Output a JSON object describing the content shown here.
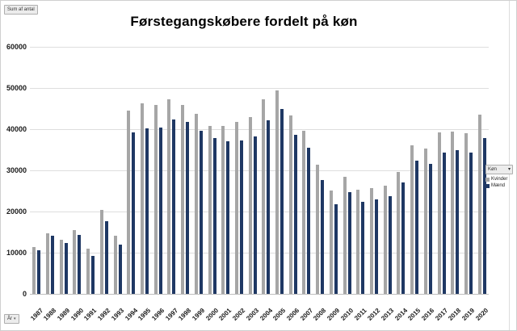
{
  "window": {
    "values_field_button": "Sum af antal",
    "axis_field_button": "År"
  },
  "legend": {
    "field_label": "Køn",
    "items": [
      {
        "label": "Kvinder",
        "color": "#a6a6a6"
      },
      {
        "label": "Mænd",
        "color": "#1f3864"
      }
    ]
  },
  "chart_data": {
    "type": "bar",
    "title": "Førstegangskøbere fordelt på køn",
    "xlabel": "",
    "ylabel": "",
    "ylim": [
      0,
      60000
    ],
    "yticks": [
      0,
      10000,
      20000,
      30000,
      40000,
      50000,
      60000
    ],
    "grid": true,
    "legend_position": "right",
    "categories": [
      1987,
      1988,
      1989,
      1990,
      1991,
      1992,
      1993,
      1994,
      1995,
      1996,
      1997,
      1998,
      1999,
      2000,
      2001,
      2002,
      2003,
      2004,
      2005,
      2006,
      2007,
      2008,
      2009,
      2010,
      2011,
      2012,
      2013,
      2014,
      2015,
      2016,
      2017,
      2018,
      2019,
      2020
    ],
    "series": [
      {
        "name": "Kvinder",
        "color": "#a6a6a6",
        "values": [
          11400,
          14800,
          13200,
          15500,
          10900,
          20300,
          14100,
          44600,
          46200,
          45900,
          47300,
          45800,
          43700,
          40700,
          40700,
          41700,
          42900,
          47300,
          49500,
          43300,
          39600,
          31300,
          25100,
          28400,
          25200,
          25600,
          26300,
          29700,
          36000,
          35200,
          39200,
          39400,
          39000,
          43500
        ]
      },
      {
        "name": "Mænd",
        "color": "#1f3864",
        "values": [
          10500,
          14100,
          12400,
          14300,
          9200,
          17700,
          12000,
          39200,
          40200,
          40400,
          42300,
          41800,
          39700,
          37800,
          37000,
          37300,
          38200,
          42100,
          45000,
          38600,
          35400,
          27700,
          21800,
          24800,
          22400,
          23000,
          23700,
          27000,
          32400,
          31600,
          34400,
          34900,
          34300,
          37800
        ]
      }
    ]
  }
}
